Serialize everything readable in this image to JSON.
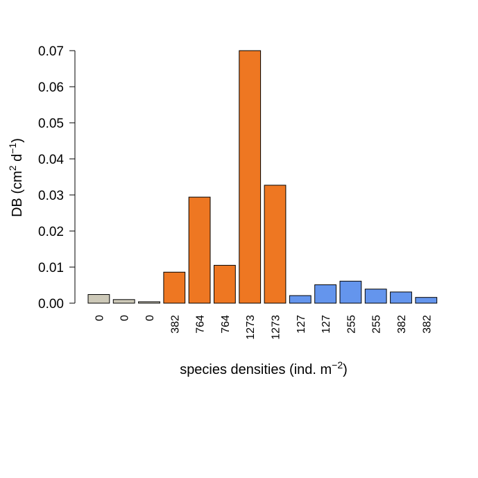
{
  "chart_data": {
    "type": "bar",
    "ylabel": {
      "main": "DB (cm",
      "sup1": "2",
      "mid": " d",
      "sup2": "−1",
      "end": ")"
    },
    "xlabel": {
      "main": "species densities (ind. m",
      "sup": "−2",
      "end": ")"
    },
    "ylim": [
      0,
      0.07
    ],
    "yticks": [
      "0.00",
      "0.01",
      "0.02",
      "0.03",
      "0.04",
      "0.05",
      "0.06",
      "0.07"
    ],
    "grid": false,
    "categories": [
      "0",
      "0",
      "0",
      "382",
      "764",
      "764",
      "1273",
      "1273",
      "127",
      "127",
      "255",
      "255",
      "382",
      "382"
    ],
    "values": [
      0.0024,
      0.001,
      0.0004,
      0.0086,
      0.0294,
      0.0105,
      0.07,
      0.0327,
      0.0021,
      0.0051,
      0.0061,
      0.0039,
      0.0031,
      0.0016
    ],
    "colors": [
      "#cdc9b8",
      "#cdc9b8",
      "#cdc9b8",
      "#ee7722",
      "#ee7722",
      "#ee7722",
      "#ee7722",
      "#ee7722",
      "#6495ed",
      "#6495ed",
      "#6495ed",
      "#6495ed",
      "#6495ed",
      "#6495ed"
    ]
  }
}
